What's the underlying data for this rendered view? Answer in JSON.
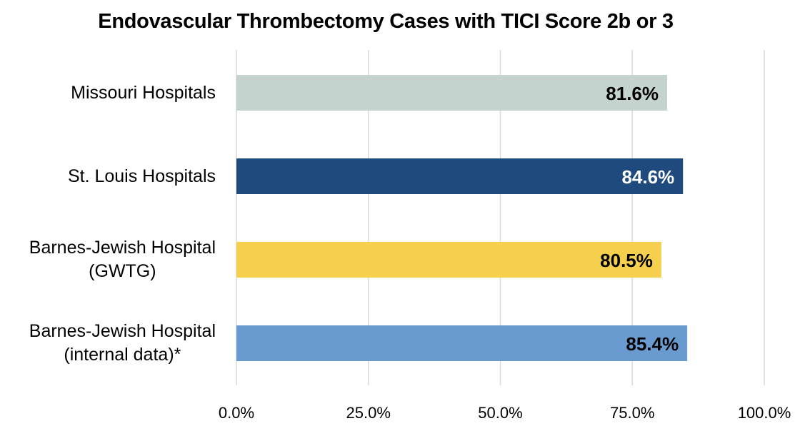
{
  "chart_data": {
    "type": "bar",
    "orientation": "horizontal",
    "title": "Endovascular Thrombectomy Cases with TICI Score 2b or 3",
    "categories": [
      [
        "Missouri Hospitals"
      ],
      [
        "St. Louis Hospitals"
      ],
      [
        "Barnes-Jewish Hospital",
        "(GWTG)"
      ],
      [
        "Barnes-Jewish Hospital",
        "(internal data)*"
      ]
    ],
    "values": [
      81.6,
      84.6,
      80.5,
      85.4
    ],
    "data_labels": [
      "81.6%",
      "84.6%",
      "80.5%",
      "85.4%"
    ],
    "bar_colors": [
      "#c5d3cf",
      "#1e4a7d",
      "#f6d04d",
      "#6a9bd0"
    ],
    "label_colors": [
      "#000000",
      "#ffffff",
      "#000000",
      "#000000"
    ],
    "xlim": [
      0,
      100
    ],
    "xticks": [
      0,
      25,
      50,
      75,
      100
    ],
    "xtick_labels": [
      "0.0%",
      "25.0%",
      "50.0%",
      "75.0%",
      "100.0%"
    ],
    "grid": true,
    "xlabel": "",
    "ylabel": ""
  }
}
